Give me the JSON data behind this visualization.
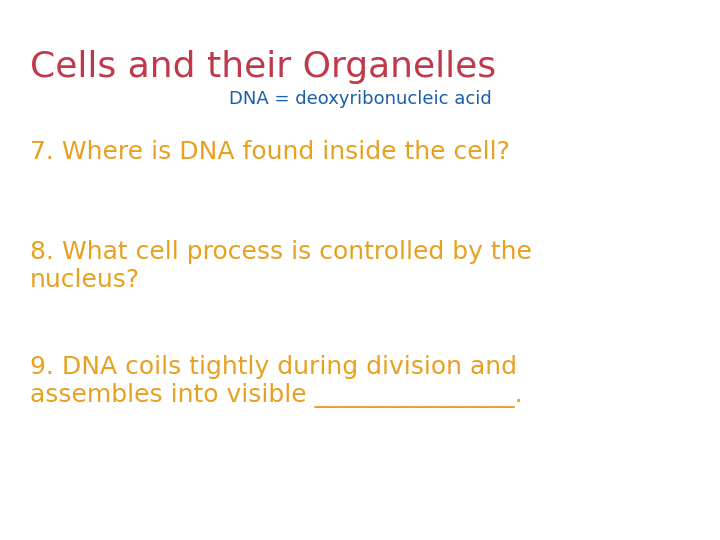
{
  "background_color": "#ffffff",
  "title": "Cells and their Organelles",
  "title_color": "#c0394b",
  "title_fontsize": 26,
  "subtitle": "DNA = deoxyribonucleic acid",
  "subtitle_color": "#1a5fa8",
  "subtitle_fontsize": 13,
  "q7": "7. Where is DNA found inside the cell?",
  "q8_line1": "8. What cell process is controlled by the",
  "q8_line2": "nucleus?",
  "q9_line1": "9. DNA coils tightly during division and",
  "q9_line2": "assembles into visible ________________.",
  "question_color": "#e8a020",
  "question_fontsize": 18,
  "font_family": "DejaVu Sans"
}
